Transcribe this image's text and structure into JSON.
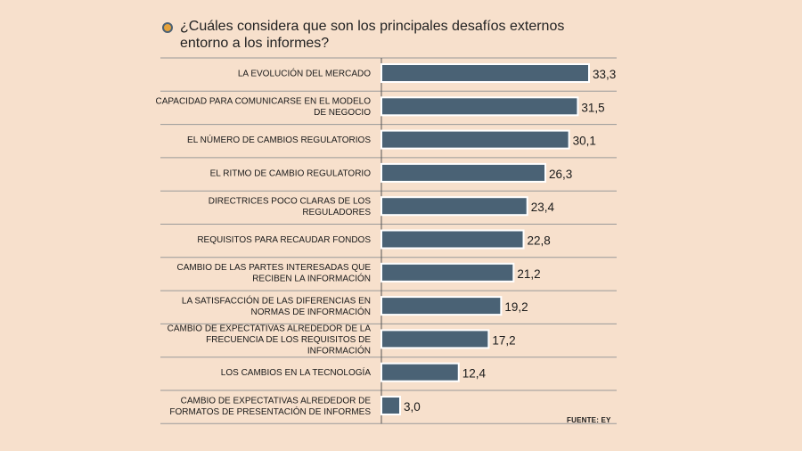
{
  "chart_data": {
    "type": "bar",
    "orientation": "horizontal",
    "title": "¿Cuáles considera que son los principales desafíos externos entorno a los informes?",
    "categories": [
      "LA EVOLUCIÓN DEL MERCADO",
      "CAPACIDAD PARA COMUNICARSE EN EL MODELO DE NEGOCIO",
      "EL NÚMERO DE CAMBIOS REGULATORIOS",
      "EL RITMO DE CAMBIO REGULATORIO",
      "DIRECTRICES POCO CLARAS DE LOS REGULADORES",
      "REQUISITOS PARA RECAUDAR FONDOS",
      "CAMBIO DE LAS PARTES INTERESADAS QUE RECIBEN  LA INFORMACIÓN",
      "LA SATISFACCIÓN DE LAS DIFERENCIAS EN NORMAS DE INFORMACIÓN",
      "CAMBIO DE EXPECTATIVAS ALREDEDOR DE LA FRECUENCIA DE LOS REQUISITOS DE INFORMACIÓN",
      "LOS CAMBIOS EN LA TECNOLOGÍA",
      "CAMBIO DE EXPECTATIVAS ALREDEDOR DE FORMATOS DE PRESENTACIÓN DE INFORMES"
    ],
    "category_lines": [
      [
        "LA EVOLUCIÓN DEL MERCADO"
      ],
      [
        "CAPACIDAD PARA COMUNICARSE EN EL MODELO",
        "DE NEGOCIO"
      ],
      [
        "EL NÚMERO DE CAMBIOS REGULATORIOS"
      ],
      [
        "EL RITMO DE CAMBIO REGULATORIO"
      ],
      [
        "DIRECTRICES POCO CLARAS DE LOS",
        "REGULADORES"
      ],
      [
        "REQUISITOS PARA RECAUDAR FONDOS"
      ],
      [
        "CAMBIO DE LAS PARTES INTERESADAS QUE",
        "RECIBEN  LA INFORMACIÓN"
      ],
      [
        "LA SATISFACCIÓN DE LAS DIFERENCIAS EN",
        "NORMAS DE INFORMACIÓN"
      ],
      [
        "CAMBIO DE EXPECTATIVAS ALREDEDOR DE LA",
        "FRECUENCIA DE LOS REQUISITOS DE",
        "INFORMACIÓN"
      ],
      [
        "LOS CAMBIOS EN LA TECNOLOGÍA"
      ],
      [
        "CAMBIO DE EXPECTATIVAS ALREDEDOR DE",
        "FORMATOS DE PRESENTACIÓN DE INFORMES"
      ]
    ],
    "values": [
      33.3,
      31.5,
      30.1,
      26.3,
      23.4,
      22.8,
      21.2,
      19.2,
      17.2,
      12.4,
      3.0
    ],
    "value_labels": [
      "33,3",
      "31,5",
      "30,1",
      "26,3",
      "23,4",
      "22,8",
      "21,2",
      "19,2",
      "17,2",
      "12,4",
      "3,0"
    ],
    "xlim": [
      0,
      36
    ],
    "grid": false,
    "legend": "none",
    "colors": {
      "bar": "#4a6275",
      "bar_outline": "#ffffff",
      "background": "#f7e0cc",
      "rule": "#999999",
      "bullet": "#e6a23a"
    }
  },
  "source": "FUENTE: EY"
}
